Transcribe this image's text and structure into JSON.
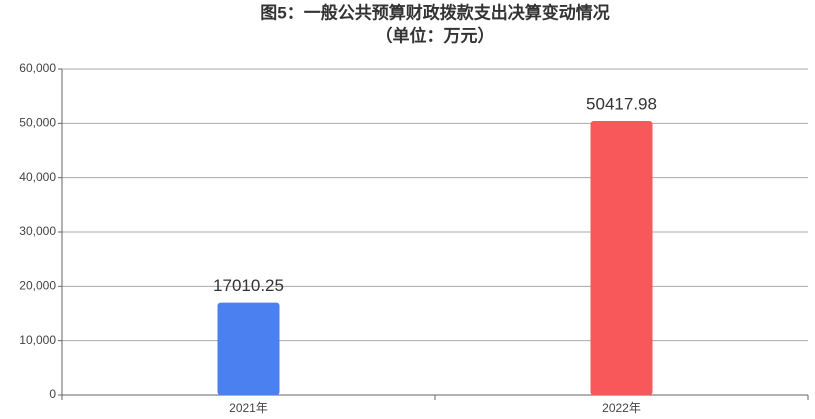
{
  "chart_data": {
    "type": "bar",
    "title": "图5：一般公共预算财政拨款支出决算变动情况",
    "subtitle": "（单位：万元）",
    "categories": [
      "2021年",
      "2022年"
    ],
    "values": [
      17010.25,
      50417.98
    ],
    "colors": [
      "#4a80f0",
      "#f8585a"
    ],
    "ylim": [
      0,
      60000
    ],
    "yticks": [
      0,
      {
        "value": 10000,
        "label": "10,000"
      },
      {
        "value": 20000,
        "label": "20,000"
      },
      {
        "value": 30000,
        "label": "30,000"
      },
      {
        "value": 40000,
        "label": "40,000"
      },
      {
        "value": 50000,
        "label": "50,000"
      },
      {
        "value": 60000,
        "label": "60,000"
      }
    ],
    "grid": true
  }
}
